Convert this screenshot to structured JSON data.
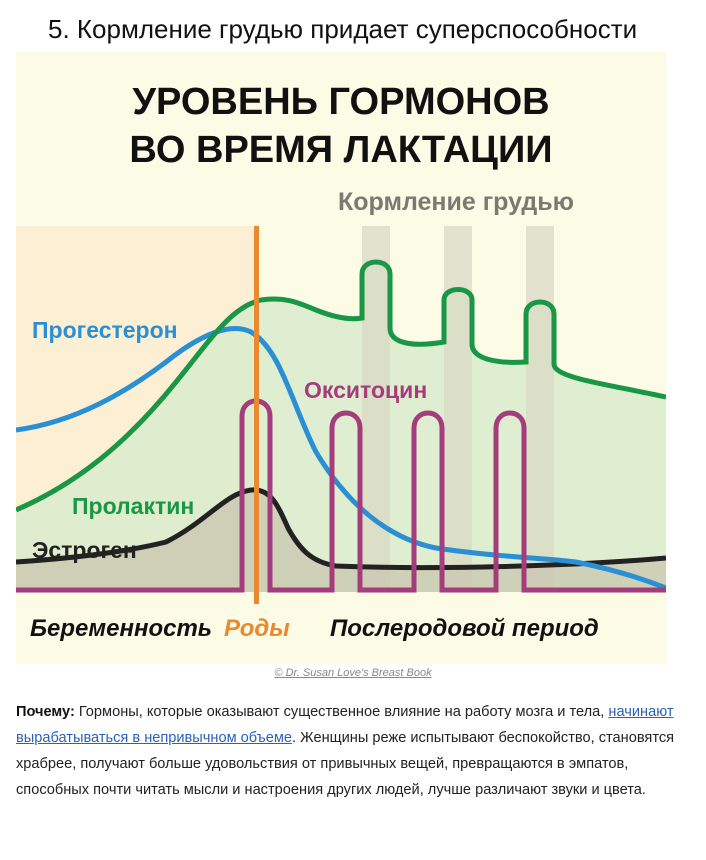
{
  "article": {
    "heading": "5. Кормление грудью придает суперспособности",
    "image_credit": "© Dr. Susan Love's Breast Book"
  },
  "figure": {
    "title_line1": "УРОВЕНЬ ГОРМОНОВ",
    "title_line2": "ВО ВРЕМЯ ЛАКТАЦИИ",
    "breastfeeding_label": "Кормление грудью",
    "curve_labels": {
      "progesterone": "Прогестерон",
      "oxytocin": "Окситоцин",
      "prolactin": "Пролактин",
      "estrogen": "Эстроген"
    },
    "phase_labels": {
      "pregnancy": "Беременность",
      "birth": "Роды",
      "postpartum": "Послеродовой период"
    },
    "colors": {
      "background": "#fbfbe6",
      "pregnancy_zone": "#fcefd4",
      "feeding_band": "#d9d9c6",
      "progesterone": "#2a8fd3",
      "prolactin": "#199747",
      "prolactin_fill": "#d9ebcb",
      "estrogen": "#222222",
      "oxytocin": "#a43d7c",
      "birth_line": "#e88a2d",
      "feeding_label": "#7a7a72"
    }
  },
  "body": {
    "lead": "Почему:",
    "text_before_link": " Гормоны, которые оказывают существенное влияние на работу мозга и тела, ",
    "link_text": "начинают вырабатываться в непривычном объеме",
    "text_after_link": ". Женщины реже испытывают беспокойство, становятся храбрее, получают больше удовольствия от привычных вещей, превращаются в эмпатов, способных почти читать мысли и настроения других людей, лучше различают звуки и цвета."
  }
}
